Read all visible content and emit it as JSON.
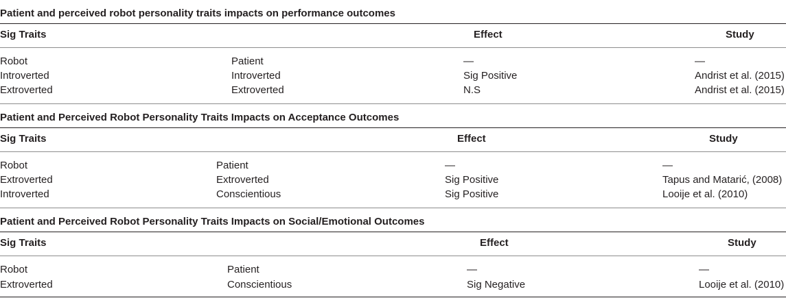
{
  "tables": [
    {
      "title": "Patient and perceived robot personality traits impacts on performance outcomes",
      "headers": {
        "traits": "Sig Traits",
        "effect": "Effect",
        "study": "Study"
      },
      "rows": [
        {
          "robot": "Robot",
          "patient": "Patient",
          "effect": "—",
          "study": "—"
        },
        {
          "robot": "Introverted",
          "patient": "Introverted",
          "effect": "Sig Positive",
          "study": "Andrist et al. (2015)"
        },
        {
          "robot": "Extroverted",
          "patient": "Extroverted",
          "effect": "N.S",
          "study": "Andrist et al. (2015)"
        }
      ]
    },
    {
      "title": "Patient and Perceived Robot Personality Traits Impacts on Acceptance Outcomes",
      "headers": {
        "traits": "Sig Traits",
        "effect": "Effect",
        "study": "Study"
      },
      "rows": [
        {
          "robot": "Robot",
          "patient": "Patient",
          "effect": "—",
          "study": "—"
        },
        {
          "robot": "Extroverted",
          "patient": "Extroverted",
          "effect": "Sig Positive",
          "study": "Tapus and Matarić, (2008)"
        },
        {
          "robot": "Introverted",
          "patient": "Conscientious",
          "effect": "Sig Positive",
          "study": "Looije et al. (2010)"
        }
      ]
    },
    {
      "title": "Patient and Perceived Robot Personality Traits Impacts on Social/Emotional Outcomes",
      "headers": {
        "traits": "Sig Traits",
        "effect": "Effect",
        "study": "Study"
      },
      "rows": [
        {
          "robot": "Robot",
          "patient": "Patient",
          "effect": "—",
          "study": "—"
        },
        {
          "robot": "Extroverted",
          "patient": "Conscientious",
          "effect": "Sig Negative",
          "study": "Looije et al. (2010)"
        }
      ]
    }
  ]
}
